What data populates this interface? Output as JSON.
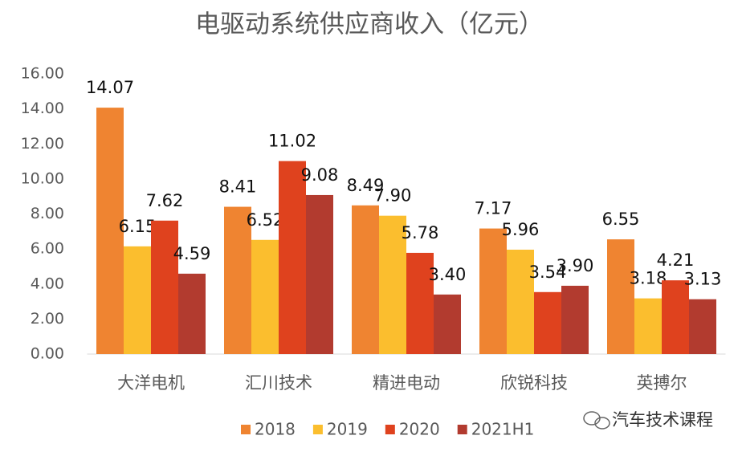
{
  "chart_data": {
    "type": "bar",
    "title": "电驱动系统供应商收入（亿元）",
    "categories": [
      "大洋电机",
      "汇川技术",
      "精进电动",
      "欣锐科技",
      "英搏尔"
    ],
    "series": [
      {
        "name": "2018",
        "color": "#ef8431",
        "values": [
          14.07,
          8.41,
          8.49,
          7.17,
          6.55
        ],
        "value_labels": [
          "14.07",
          "8.41",
          "8.49",
          "7.17",
          "6.55"
        ]
      },
      {
        "name": "2019",
        "color": "#fbbe2e",
        "values": [
          6.15,
          6.52,
          7.9,
          5.96,
          3.18
        ],
        "value_labels": [
          "6.15",
          "6.52",
          "7.90",
          "5.96",
          "3.18"
        ]
      },
      {
        "name": "2020",
        "color": "#df421e",
        "values": [
          7.62,
          11.02,
          5.78,
          3.54,
          4.21
        ],
        "value_labels": [
          "7.62",
          "11.02",
          "5.78",
          "3.54",
          "4.21"
        ]
      },
      {
        "name": "2021H1",
        "color": "#b23b2f",
        "values": [
          4.59,
          9.08,
          3.4,
          3.9,
          3.13
        ],
        "value_labels": [
          "4.59",
          "9.08",
          "3.40",
          "3.90",
          "3.13"
        ]
      }
    ],
    "ylim": [
      0,
      16
    ],
    "yticks": [
      {
        "value": 0,
        "label": "0.00"
      },
      {
        "value": 2,
        "label": "2.00"
      },
      {
        "value": 4,
        "label": "4.00"
      },
      {
        "value": 6,
        "label": "6.00"
      },
      {
        "value": 8,
        "label": "8.00"
      },
      {
        "value": 10,
        "label": "10.00"
      },
      {
        "value": 12,
        "label": "12.00"
      },
      {
        "value": 14,
        "label": "14.00"
      },
      {
        "value": 16,
        "label": "16.00"
      }
    ],
    "grid": false,
    "legend": "bottom",
    "watermark": "汽车技术课程"
  }
}
